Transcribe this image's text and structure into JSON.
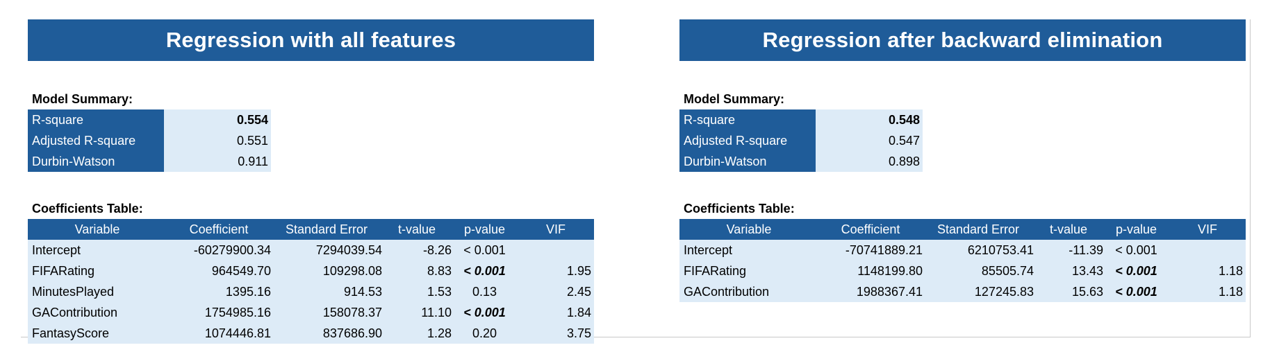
{
  "left": {
    "title": "Regression with all features",
    "model_summary_label": "Model Summary:",
    "summary": [
      {
        "label": "R-square",
        "value": "0.554"
      },
      {
        "label": "Adjusted R-square",
        "value": "0.551"
      },
      {
        "label": "Durbin-Watson",
        "value": "0.911"
      }
    ],
    "coef_label": "Coefficients Table:",
    "headers": [
      "Variable",
      "Coefficient",
      "Standard Error",
      "t-value",
      "p-value",
      "VIF"
    ],
    "rows": [
      {
        "variable": "Intercept",
        "coefficient": "-60279900.34",
        "std_error": "7294039.54",
        "t_value": "-8.26",
        "p_value": "< 0.001",
        "vif": ""
      },
      {
        "variable": "FIFARating",
        "coefficient": "964549.70",
        "std_error": "109298.08",
        "t_value": "8.83",
        "p_value": "< 0.001",
        "vif": "1.95"
      },
      {
        "variable": "MinutesPlayed",
        "coefficient": "1395.16",
        "std_error": "914.53",
        "t_value": "1.53",
        "p_value": "0.13",
        "vif": "2.45"
      },
      {
        "variable": "GAContribution",
        "coefficient": "1754985.16",
        "std_error": "158078.37",
        "t_value": "11.10",
        "p_value": "< 0.001",
        "vif": "1.84"
      },
      {
        "variable": "FantasyScore",
        "coefficient": "1074446.81",
        "std_error": "837686.90",
        "t_value": "1.28",
        "p_value": "0.20",
        "vif": "3.75"
      }
    ]
  },
  "right": {
    "title": "Regression after backward elimination",
    "model_summary_label": "Model Summary:",
    "summary": [
      {
        "label": "R-square",
        "value": "0.548"
      },
      {
        "label": "Adjusted R-square",
        "value": "0.547"
      },
      {
        "label": "Durbin-Watson",
        "value": "0.898"
      }
    ],
    "coef_label": "Coefficients Table:",
    "headers": [
      "Variable",
      "Coefficient",
      "Standard Error",
      "t-value",
      "p-value",
      "VIF"
    ],
    "rows": [
      {
        "variable": "Intercept",
        "coefficient": "-70741889.21",
        "std_error": "6210753.41",
        "t_value": "-11.39",
        "p_value": "< 0.001",
        "vif": ""
      },
      {
        "variable": "FIFARating",
        "coefficient": "1148199.80",
        "std_error": "85505.74",
        "t_value": "13.43",
        "p_value": "< 0.001",
        "vif": "1.18"
      },
      {
        "variable": "GAContribution",
        "coefficient": "1988367.41",
        "std_error": "127245.83",
        "t_value": "15.63",
        "p_value": "< 0.001",
        "vif": "1.18"
      }
    ]
  }
}
